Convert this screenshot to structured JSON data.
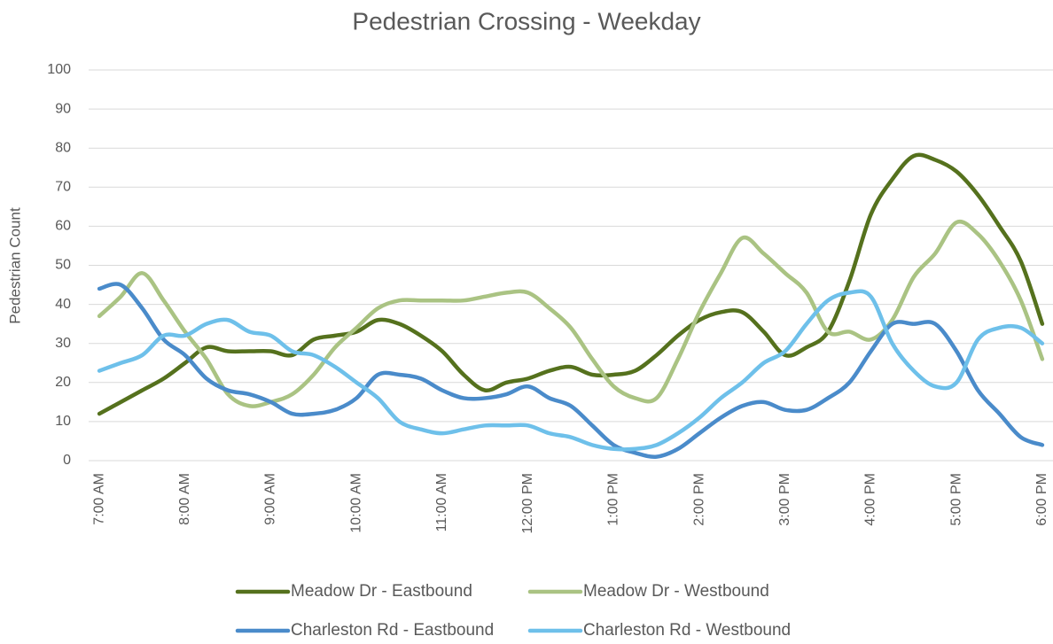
{
  "chart_data": {
    "type": "line",
    "title": "Pedestrian Crossing - Weekday",
    "y_label": "Pedestrian Count",
    "categories": [
      "7:00 AM",
      null,
      null,
      null,
      "8:00 AM",
      null,
      null,
      null,
      "9:00 AM",
      null,
      null,
      null,
      "10:00 AM",
      null,
      null,
      null,
      "11:00 AM",
      null,
      null,
      null,
      "12:00 PM",
      null,
      null,
      null,
      "1:00 PM",
      null,
      null,
      null,
      "2:00 PM",
      null,
      null,
      null,
      "3:00 PM",
      null,
      null,
      null,
      "4:00 PM",
      null,
      null,
      null,
      "5:00 PM",
      null,
      null,
      null,
      "6:00 PM"
    ],
    "series": [
      {
        "name": "Meadow Dr - Eastbound",
        "color": "#55711d",
        "values": [
          12,
          15,
          18,
          21,
          25,
          29,
          28,
          28,
          28,
          27,
          31,
          32,
          33,
          36,
          35,
          32,
          28,
          22,
          18,
          20,
          21,
          23,
          24,
          22,
          22,
          23,
          27,
          32,
          36,
          38,
          38,
          33,
          27,
          29,
          33,
          46,
          63,
          72,
          78,
          77,
          74,
          68,
          60,
          51,
          35
        ]
      },
      {
        "name": "Meadow Dr - Westbound",
        "color": "#aac383",
        "values": [
          37,
          42,
          48,
          41,
          33,
          26,
          17,
          14,
          15,
          17,
          22,
          29,
          34,
          39,
          41,
          41,
          41,
          41,
          42,
          43,
          43,
          39,
          34,
          26,
          19,
          16,
          16,
          26,
          38,
          48,
          57,
          53,
          48,
          43,
          33,
          33,
          31,
          36,
          47,
          53,
          61,
          58,
          51,
          41,
          26
        ]
      },
      {
        "name": "Charleston Rd - Eastbound",
        "color": "#4a8bca",
        "values": [
          44,
          45,
          39,
          31,
          27,
          21,
          18,
          17,
          15,
          12,
          12,
          13,
          16,
          22,
          22,
          21,
          18,
          16,
          16,
          17,
          19,
          16,
          14,
          9,
          4,
          2,
          1,
          3,
          7,
          11,
          14,
          15,
          13,
          13,
          16,
          20,
          28,
          35,
          35,
          35,
          28,
          18,
          12,
          6,
          4
        ]
      },
      {
        "name": "Charleston Rd - Westbound",
        "color": "#6ec0ea",
        "values": [
          23,
          25,
          27,
          32,
          32,
          35,
          36,
          33,
          32,
          28,
          27,
          24,
          20,
          16,
          10,
          8,
          7,
          8,
          9,
          9,
          9,
          7,
          6,
          4,
          3,
          3,
          4,
          7,
          11,
          16,
          20,
          25,
          28,
          35,
          41,
          43,
          42,
          30,
          23,
          19,
          20,
          31,
          34,
          34,
          30
        ]
      }
    ],
    "ylim": [
      0,
      100
    ],
    "yticks": [
      0,
      10,
      20,
      30,
      40,
      50,
      60,
      70,
      80,
      90,
      100
    ],
    "grid": true,
    "legend": "bottom"
  }
}
